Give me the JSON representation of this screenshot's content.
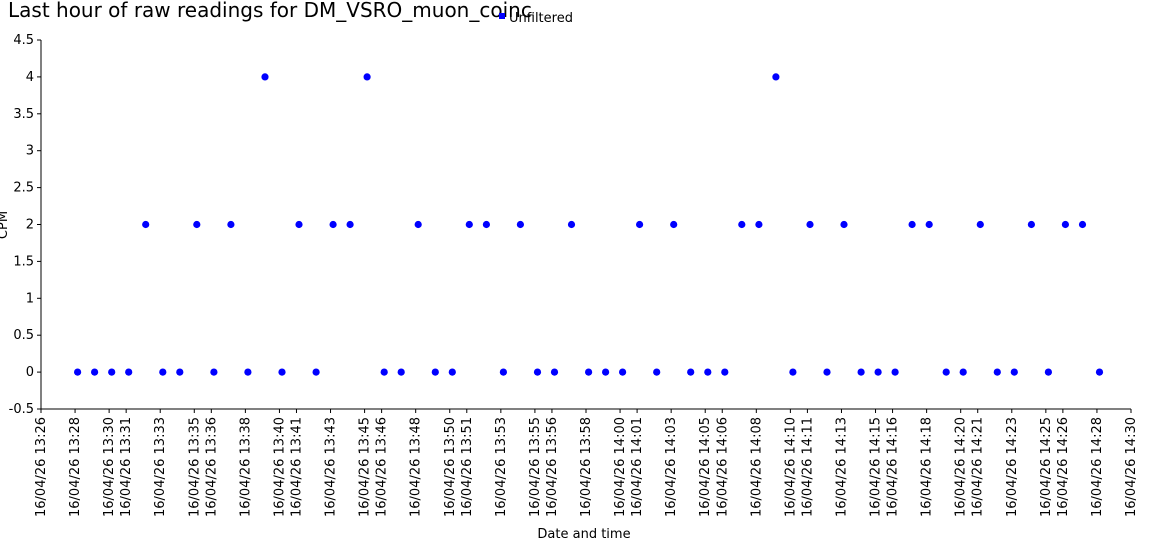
{
  "chart_data": {
    "type": "scatter",
    "title": "Last hour of raw readings for DM_VSRO_muon_coinc",
    "xlabel": "Date and time",
    "ylabel": "CPM",
    "ylim": [
      -0.5,
      4.5
    ],
    "y_ticks": [
      -0.5,
      0,
      0.5,
      1,
      1.5,
      2,
      2.5,
      3,
      3.5,
      4,
      4.5
    ],
    "x_ticks": [
      "16/04/26 13:26",
      "16/04/26 13:28",
      "16/04/26 13:30",
      "16/04/26 13:31",
      "16/04/26 13:33",
      "16/04/26 13:35",
      "16/04/26 13:36",
      "16/04/26 13:38",
      "16/04/26 13:40",
      "16/04/26 13:41",
      "16/04/26 13:43",
      "16/04/26 13:45",
      "16/04/26 13:46",
      "16/04/26 13:48",
      "16/04/26 13:50",
      "16/04/26 13:51",
      "16/04/26 13:53",
      "16/04/26 13:55",
      "16/04/26 13:56",
      "16/04/26 13:58",
      "16/04/26 14:00",
      "16/04/26 14:01",
      "16/04/26 14:03",
      "16/04/26 14:05",
      "16/04/26 14:06",
      "16/04/26 14:08",
      "16/04/26 14:10",
      "16/04/26 14:11",
      "16/04/26 14:13",
      "16/04/26 14:15",
      "16/04/26 14:16",
      "16/04/26 14:18",
      "16/04/26 14:20",
      "16/04/26 14:21",
      "16/04/26 14:23",
      "16/04/26 14:25",
      "16/04/26 14:26",
      "16/04/26 14:28",
      "16/04/26 14:30"
    ],
    "legend_position": "top-center",
    "grid": false,
    "series": [
      {
        "name": "Unfiltered",
        "color": "#0000ff",
        "x": [
          "16/04/26 13:28:09",
          "16/04/26 13:29:09",
          "16/04/26 13:30:09",
          "16/04/26 13:31:09",
          "16/04/26 13:32:09",
          "16/04/26 13:33:09",
          "16/04/26 13:34:09",
          "16/04/26 13:35:09",
          "16/04/26 13:36:09",
          "16/04/26 13:37:09",
          "16/04/26 13:38:09",
          "16/04/26 13:39:09",
          "16/04/26 13:40:09",
          "16/04/26 13:41:09",
          "16/04/26 13:42:09",
          "16/04/26 13:43:09",
          "16/04/26 13:44:09",
          "16/04/26 13:45:09",
          "16/04/26 13:46:09",
          "16/04/26 13:47:09",
          "16/04/26 13:48:09",
          "16/04/26 13:49:09",
          "16/04/26 13:50:09",
          "16/04/26 13:51:09",
          "16/04/26 13:52:09",
          "16/04/26 13:53:09",
          "16/04/26 13:54:09",
          "16/04/26 13:55:09",
          "16/04/26 13:56:09",
          "16/04/26 13:57:09",
          "16/04/26 13:58:09",
          "16/04/26 13:59:09",
          "16/04/26 14:00:09",
          "16/04/26 14:01:09",
          "16/04/26 14:02:09",
          "16/04/26 14:03:09",
          "16/04/26 14:04:09",
          "16/04/26 14:05:09",
          "16/04/26 14:06:09",
          "16/04/26 14:07:09",
          "16/04/26 14:08:09",
          "16/04/26 14:09:09",
          "16/04/26 14:10:09",
          "16/04/26 14:11:09",
          "16/04/26 14:12:09",
          "16/04/26 14:13:09",
          "16/04/26 14:14:09",
          "16/04/26 14:15:09",
          "16/04/26 14:16:09",
          "16/04/26 14:17:09",
          "16/04/26 14:18:09",
          "16/04/26 14:19:09",
          "16/04/26 14:20:09",
          "16/04/26 14:21:09",
          "16/04/26 14:22:09",
          "16/04/26 14:23:09",
          "16/04/26 14:24:09",
          "16/04/26 14:25:09",
          "16/04/26 14:26:09",
          "16/04/26 14:27:09",
          "16/04/26 14:28:09"
        ],
        "y": [
          0,
          0,
          0,
          0,
          2,
          0,
          0,
          2,
          0,
          2,
          0,
          4,
          0,
          2,
          0,
          2,
          2,
          4,
          0,
          0,
          2,
          0,
          0,
          2,
          2,
          0,
          2,
          0,
          0,
          2,
          0,
          0,
          0,
          2,
          0,
          2,
          0,
          0,
          0,
          2,
          2,
          4,
          0,
          2,
          0,
          2,
          0,
          0,
          0,
          2,
          2,
          0,
          0,
          2,
          0,
          0,
          2,
          0,
          2,
          2,
          0
        ]
      }
    ]
  }
}
